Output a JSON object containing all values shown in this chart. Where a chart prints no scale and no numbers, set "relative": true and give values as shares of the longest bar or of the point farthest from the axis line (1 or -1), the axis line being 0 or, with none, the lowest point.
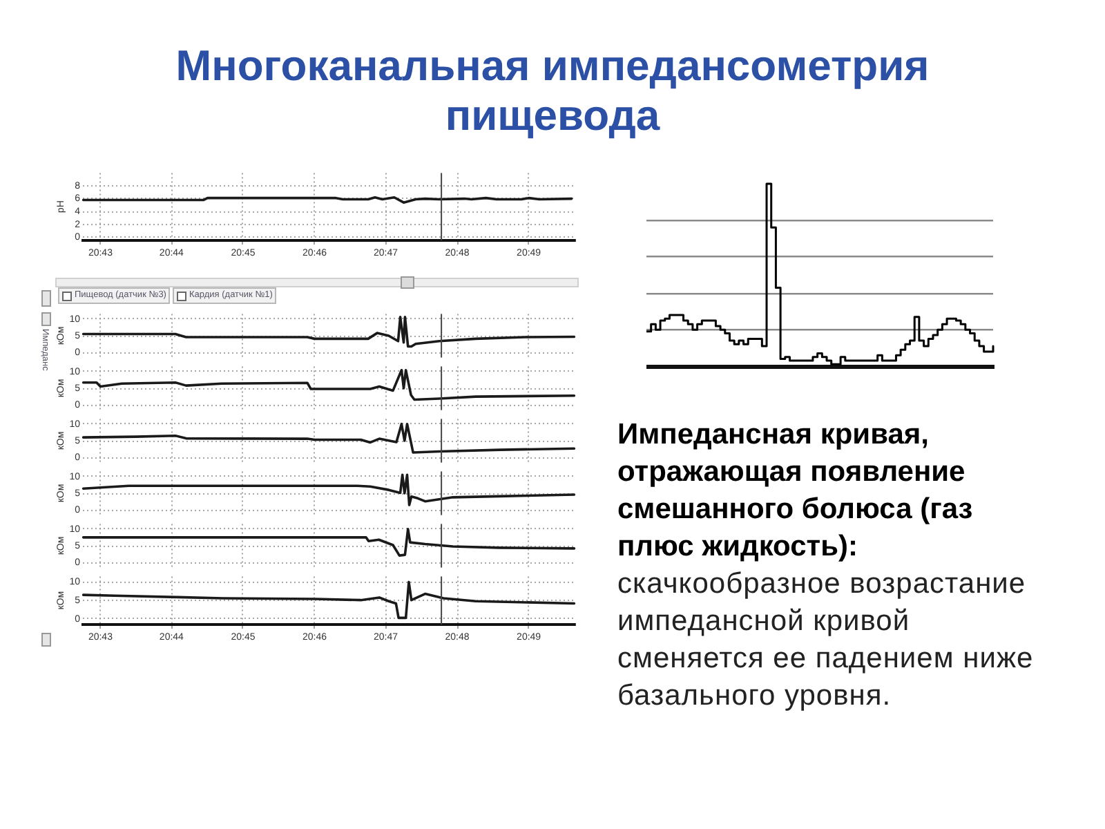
{
  "chart_data": [
    {
      "type": "line",
      "ylabel": "pH",
      "x": [
        20.7127,
        20.7408,
        20.7417,
        20.7717,
        20.7733,
        20.7792,
        20.7808,
        20.7825,
        20.7853,
        20.7875,
        20.7903,
        20.7925,
        20.7958,
        20.8017,
        20.8033,
        20.8067,
        20.8092,
        20.815,
        20.8167,
        20.8192,
        20.8267
      ],
      "values": [
        5.8,
        5.8,
        6.1,
        6.1,
        5.9,
        5.9,
        6.2,
        5.9,
        6.2,
        5.4,
        5.9,
        6.0,
        5.9,
        6.0,
        5.9,
        6.1,
        5.9,
        5.9,
        6.1,
        5.9,
        6.0
      ],
      "color": "#1a1a1a",
      "xlim": [
        20.7126,
        20.8274
      ],
      "xticks": [
        {
          "value": 20.7167,
          "label": "20:43"
        },
        {
          "value": 20.7333,
          "label": "20:44"
        },
        {
          "value": 20.75,
          "label": "20:45"
        },
        {
          "value": 20.7667,
          "label": "20:46"
        },
        {
          "value": 20.7833,
          "label": "20:47"
        },
        {
          "value": 20.8,
          "label": "20:48"
        },
        {
          "value": 20.8167,
          "label": "20:49"
        }
      ],
      "ylim": [
        -0.5,
        10
      ],
      "yticks": [
        0,
        2,
        4,
        6,
        8
      ],
      "grid": true,
      "ref_lines": [
        {
          "axis": "x",
          "value": 20.7963,
          "color": "#444444"
        }
      ]
    },
    {
      "type": "line",
      "ylabel": "кОм",
      "annotations": [
        "Пищевод (датчик №3)",
        "Кардия (датчик №1)",
        "Импеданс"
      ],
      "x": [
        20.7127,
        20.7342,
        20.7367,
        20.765,
        20.7667,
        20.7792,
        20.7813,
        20.784,
        20.7862,
        20.7867,
        20.7875,
        20.7878,
        20.7885,
        20.7893,
        20.7903,
        20.7958,
        20.8043,
        20.8158,
        20.8273
      ],
      "values": [
        5.5,
        5.5,
        4.6,
        4.6,
        4.1,
        4.1,
        5.8,
        5.0,
        3.4,
        10.6,
        3.0,
        10.6,
        1.8,
        1.8,
        2.6,
        3.4,
        4.1,
        4.6,
        4.7
      ],
      "color": "#1a1a1a",
      "xlim": [
        20.7126,
        20.8274
      ],
      "xticks": [
        {
          "value": 20.7167,
          "label": null
        },
        {
          "value": 20.7333,
          "label": null
        },
        {
          "value": 20.75,
          "label": null
        },
        {
          "value": 20.7667,
          "label": null
        },
        {
          "value": 20.7833,
          "label": null
        },
        {
          "value": 20.8,
          "label": null
        },
        {
          "value": 20.8167,
          "label": null
        }
      ],
      "ylim": [
        -1.5,
        11.5
      ],
      "yticks": [
        0,
        5,
        10
      ],
      "grid": true,
      "tick_labels": "y",
      "ref_lines": [
        {
          "axis": "x",
          "value": 20.7963,
          "color": "#444444"
        }
      ]
    },
    {
      "type": "line",
      "ylabel": "кОм",
      "x": [
        20.7127,
        20.7158,
        20.7167,
        20.7217,
        20.7342,
        20.7367,
        20.745,
        20.765,
        20.7658,
        20.7797,
        20.7818,
        20.785,
        20.787,
        20.7875,
        20.788,
        20.7892,
        20.79,
        20.7958,
        20.8043,
        20.8273
      ],
      "values": [
        6.7,
        6.7,
        5.5,
        6.4,
        6.7,
        5.8,
        6.4,
        6.6,
        4.8,
        4.8,
        5.5,
        4.3,
        10.4,
        5.0,
        10.4,
        3.0,
        1.6,
        1.9,
        2.5,
        2.8
      ],
      "color": "#1a1a1a",
      "xlim": [
        20.7126,
        20.8274
      ],
      "xticks": [
        {
          "value": 20.7167,
          "label": null
        },
        {
          "value": 20.7333,
          "label": null
        },
        {
          "value": 20.75,
          "label": null
        },
        {
          "value": 20.7667,
          "label": null
        },
        {
          "value": 20.7833,
          "label": null
        },
        {
          "value": 20.8,
          "label": null
        },
        {
          "value": 20.8167,
          "label": null
        }
      ],
      "ylim": [
        -1.5,
        11.5
      ],
      "yticks": [
        0,
        5,
        10
      ],
      "grid": true,
      "tick_labels": "y",
      "ref_lines": [
        {
          "axis": "x",
          "value": 20.7963,
          "color": "#444444"
        }
      ]
    },
    {
      "type": "line",
      "ylabel": "кОм",
      "x": [
        20.7127,
        20.725,
        20.7342,
        20.7367,
        20.765,
        20.7667,
        20.7775,
        20.7797,
        20.7818,
        20.7858,
        20.787,
        20.7877,
        20.7883,
        20.7897,
        20.7958,
        20.81,
        20.8273
      ],
      "values": [
        6.0,
        6.2,
        6.5,
        5.7,
        5.6,
        5.3,
        5.3,
        4.5,
        5.6,
        4.6,
        10.0,
        5.0,
        10.0,
        1.5,
        1.8,
        2.3,
        2.7
      ],
      "color": "#1a1a1a",
      "xlim": [
        20.7126,
        20.8274
      ],
      "xticks": [
        {
          "value": 20.7167,
          "label": null
        },
        {
          "value": 20.7333,
          "label": null
        },
        {
          "value": 20.75,
          "label": null
        },
        {
          "value": 20.7667,
          "label": null
        },
        {
          "value": 20.7833,
          "label": null
        },
        {
          "value": 20.8,
          "label": null
        },
        {
          "value": 20.8167,
          "label": null
        }
      ],
      "ylim": [
        -1.5,
        11.5
      ],
      "yticks": [
        0,
        5,
        10
      ],
      "grid": true,
      "tick_labels": "y",
      "ref_lines": [
        {
          "axis": "x",
          "value": 20.7963,
          "color": "#444444"
        }
      ]
    },
    {
      "type": "line",
      "ylabel": "кОм",
      "x": [
        20.7127,
        20.7233,
        20.7767,
        20.7797,
        20.784,
        20.7867,
        20.7872,
        20.7877,
        20.7883,
        20.7888,
        20.7893,
        20.7908,
        20.7925,
        20.799,
        20.8097,
        20.8273
      ],
      "values": [
        6.4,
        7.2,
        7.2,
        7.0,
        6.0,
        5.1,
        10.5,
        5.0,
        10.5,
        1.5,
        4.0,
        3.5,
        2.6,
        3.8,
        4.1,
        4.6
      ],
      "color": "#1a1a1a",
      "xlim": [
        20.7126,
        20.8274
      ],
      "xticks": [
        {
          "value": 20.7167,
          "label": null
        },
        {
          "value": 20.7333,
          "label": null
        },
        {
          "value": 20.75,
          "label": null
        },
        {
          "value": 20.7667,
          "label": null
        },
        {
          "value": 20.7833,
          "label": null
        },
        {
          "value": 20.8,
          "label": null
        },
        {
          "value": 20.8167,
          "label": null
        }
      ],
      "ylim": [
        -1.5,
        11.5
      ],
      "yticks": [
        0,
        5,
        10
      ],
      "grid": true,
      "tick_labels": "y",
      "ref_lines": [
        {
          "axis": "x",
          "value": 20.7963,
          "color": "#444444"
        }
      ]
    },
    {
      "type": "line",
      "ylabel": "кОм",
      "x": [
        20.7127,
        20.7787,
        20.7793,
        20.7817,
        20.785,
        20.7865,
        20.7878,
        20.7885,
        20.789,
        20.7925,
        20.799,
        20.8097,
        20.8273
      ],
      "values": [
        7.5,
        7.5,
        6.4,
        6.8,
        5.2,
        2.1,
        2.3,
        10.0,
        6.0,
        5.5,
        4.8,
        4.4,
        4.2
      ],
      "color": "#1a1a1a",
      "xlim": [
        20.7126,
        20.8274
      ],
      "xticks": [
        {
          "value": 20.7167,
          "label": null
        },
        {
          "value": 20.7333,
          "label": null
        },
        {
          "value": 20.75,
          "label": null
        },
        {
          "value": 20.7667,
          "label": null
        },
        {
          "value": 20.7833,
          "label": null
        },
        {
          "value": 20.8,
          "label": null
        },
        {
          "value": 20.8167,
          "label": null
        }
      ],
      "ylim": [
        -1.5,
        11.5
      ],
      "yticks": [
        0,
        5,
        10
      ],
      "grid": true,
      "tick_labels": "y",
      "ref_lines": [
        {
          "axis": "x",
          "value": 20.7963,
          "color": "#444444"
        }
      ]
    },
    {
      "type": "line",
      "ylabel": "кОм",
      "x": [
        20.7127,
        20.72,
        20.7347,
        20.7453,
        20.7668,
        20.7775,
        20.7818,
        20.784,
        20.7857,
        20.7863,
        20.788,
        20.7887,
        20.7893,
        20.7925,
        20.7968,
        20.8043,
        20.8273
      ],
      "values": [
        6.5,
        6.3,
        5.9,
        5.6,
        5.4,
        5.1,
        5.8,
        4.8,
        4.2,
        0.3,
        0.3,
        10.0,
        5.1,
        6.8,
        5.6,
        4.8,
        4.2
      ],
      "color": "#1a1a1a",
      "xlim": [
        20.7126,
        20.8274
      ],
      "xticks": [
        {
          "value": 20.7167,
          "label": "20:43"
        },
        {
          "value": 20.7333,
          "label": "20:44"
        },
        {
          "value": 20.75,
          "label": "20:45"
        },
        {
          "value": 20.7667,
          "label": "20:46"
        },
        {
          "value": 20.7833,
          "label": "20:47"
        },
        {
          "value": 20.8,
          "label": "20:48"
        },
        {
          "value": 20.8167,
          "label": "20:49"
        }
      ],
      "ylim": [
        -1.5,
        11.5
      ],
      "yticks": [
        0,
        5,
        10
      ],
      "grid": true,
      "ref_lines": [
        {
          "axis": "x",
          "value": 20.7963,
          "color": "#444444"
        }
      ]
    },
    {
      "type": "step",
      "relative": true,
      "categories": [
        null,
        null,
        null,
        null,
        null,
        null,
        null,
        null,
        null,
        null,
        null,
        null,
        null,
        null,
        null,
        null,
        null,
        null,
        null,
        null,
        null,
        null,
        null,
        null,
        null,
        null,
        null,
        null,
        null,
        null,
        null,
        null,
        null,
        null,
        null,
        null,
        null,
        null,
        null,
        null,
        null,
        null,
        null,
        null,
        null,
        null,
        null,
        null,
        null,
        null,
        null,
        null,
        null,
        null,
        null,
        null,
        null,
        null,
        null,
        null,
        null,
        null,
        null,
        null,
        null,
        null,
        null,
        null,
        null,
        null,
        null,
        null,
        null,
        null,
        null,
        null
      ],
      "values": [
        0.19,
        0.23,
        0.2,
        0.25,
        0.26,
        0.28,
        0.28,
        0.28,
        0.25,
        0.23,
        0.2,
        0.23,
        0.25,
        0.25,
        0.25,
        0.22,
        0.2,
        0.18,
        0.14,
        0.12,
        0.14,
        0.12,
        0.15,
        0.15,
        0.15,
        0.11,
        1,
        0.76,
        0.43,
        0.04,
        0.05,
        0.03,
        0.03,
        0.03,
        0.03,
        0.03,
        0.05,
        0.07,
        0.05,
        0.03,
        0.01,
        0.01,
        0.05,
        0.03,
        0.03,
        0.03,
        0.03,
        0.03,
        0.03,
        0.03,
        0.06,
        0.03,
        0.03,
        0.03,
        0.06,
        0.09,
        0.12,
        0.14,
        0.27,
        0.14,
        0.11,
        0.15,
        0.17,
        0.2,
        0.23,
        0.26,
        0.26,
        0.25,
        0.23,
        0.2,
        0.18,
        0.14,
        0.11,
        0.08,
        0.08,
        0.11
      ],
      "color": "#000000",
      "grid": "y",
      "tick_labels": false
    },
    {
      "type": "other",
      "title": "Многоканальная импедансометрия пищевода",
      "annotations": [
        "Импедансная кривая, отражающая появление смешанного болюса (газ плюс жидкость):",
        "скачкообразное возрастание импедансной кривой сменяется ее падением ниже базального уровня."
      ]
    }
  ]
}
